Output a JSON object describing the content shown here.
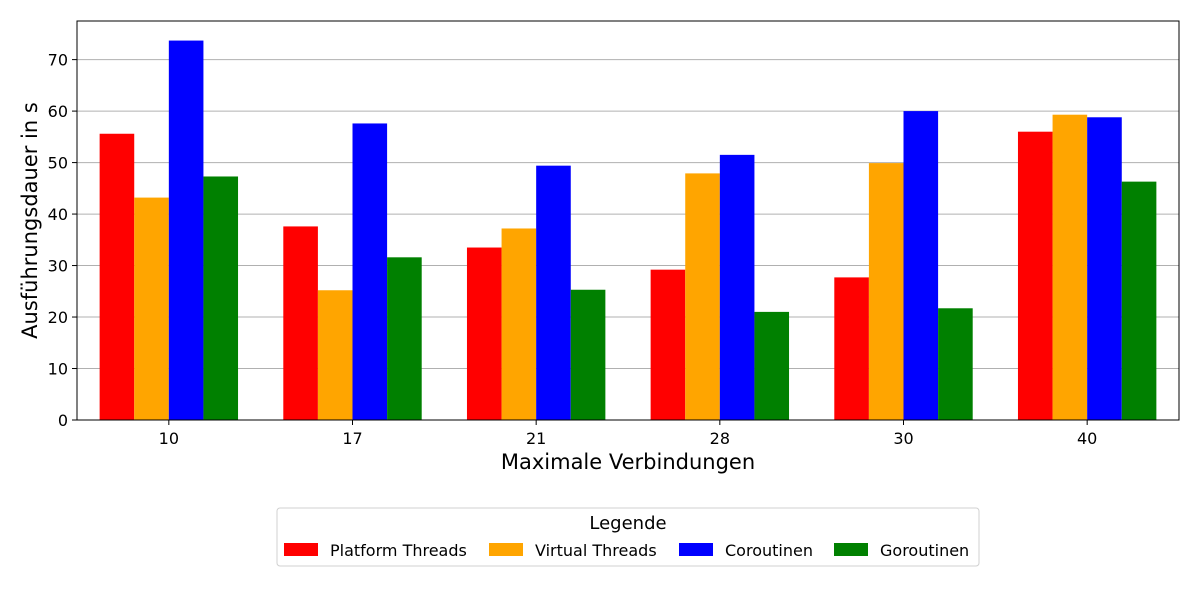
{
  "chart_data": {
    "type": "bar",
    "title": "",
    "xlabel": "Maximale Verbindungen",
    "ylabel": "Ausführungsdauer in s",
    "categories": [
      "10",
      "17",
      "21",
      "28",
      "30",
      "40"
    ],
    "ylim": [
      0,
      77.5
    ],
    "yticks": [
      0,
      10,
      20,
      30,
      40,
      50,
      60,
      70
    ],
    "grid": "y-axis",
    "legend": {
      "title": "Legende",
      "placement": "bottom-center"
    },
    "series": [
      {
        "name": "Platform Threads",
        "color": "#ff0000",
        "values": [
          55.6,
          37.6,
          33.5,
          29.2,
          27.7,
          56.0
        ]
      },
      {
        "name": "Virtual Threads",
        "color": "#ffa500",
        "values": [
          43.2,
          25.2,
          37.2,
          47.9,
          49.9,
          59.3
        ]
      },
      {
        "name": "Coroutinen",
        "color": "#0000ff",
        "values": [
          73.7,
          57.6,
          49.4,
          51.5,
          60.0,
          58.8
        ]
      },
      {
        "name": "Goroutinen",
        "color": "#008000",
        "values": [
          47.3,
          31.6,
          25.3,
          21.0,
          21.7,
          46.3
        ]
      }
    ]
  }
}
